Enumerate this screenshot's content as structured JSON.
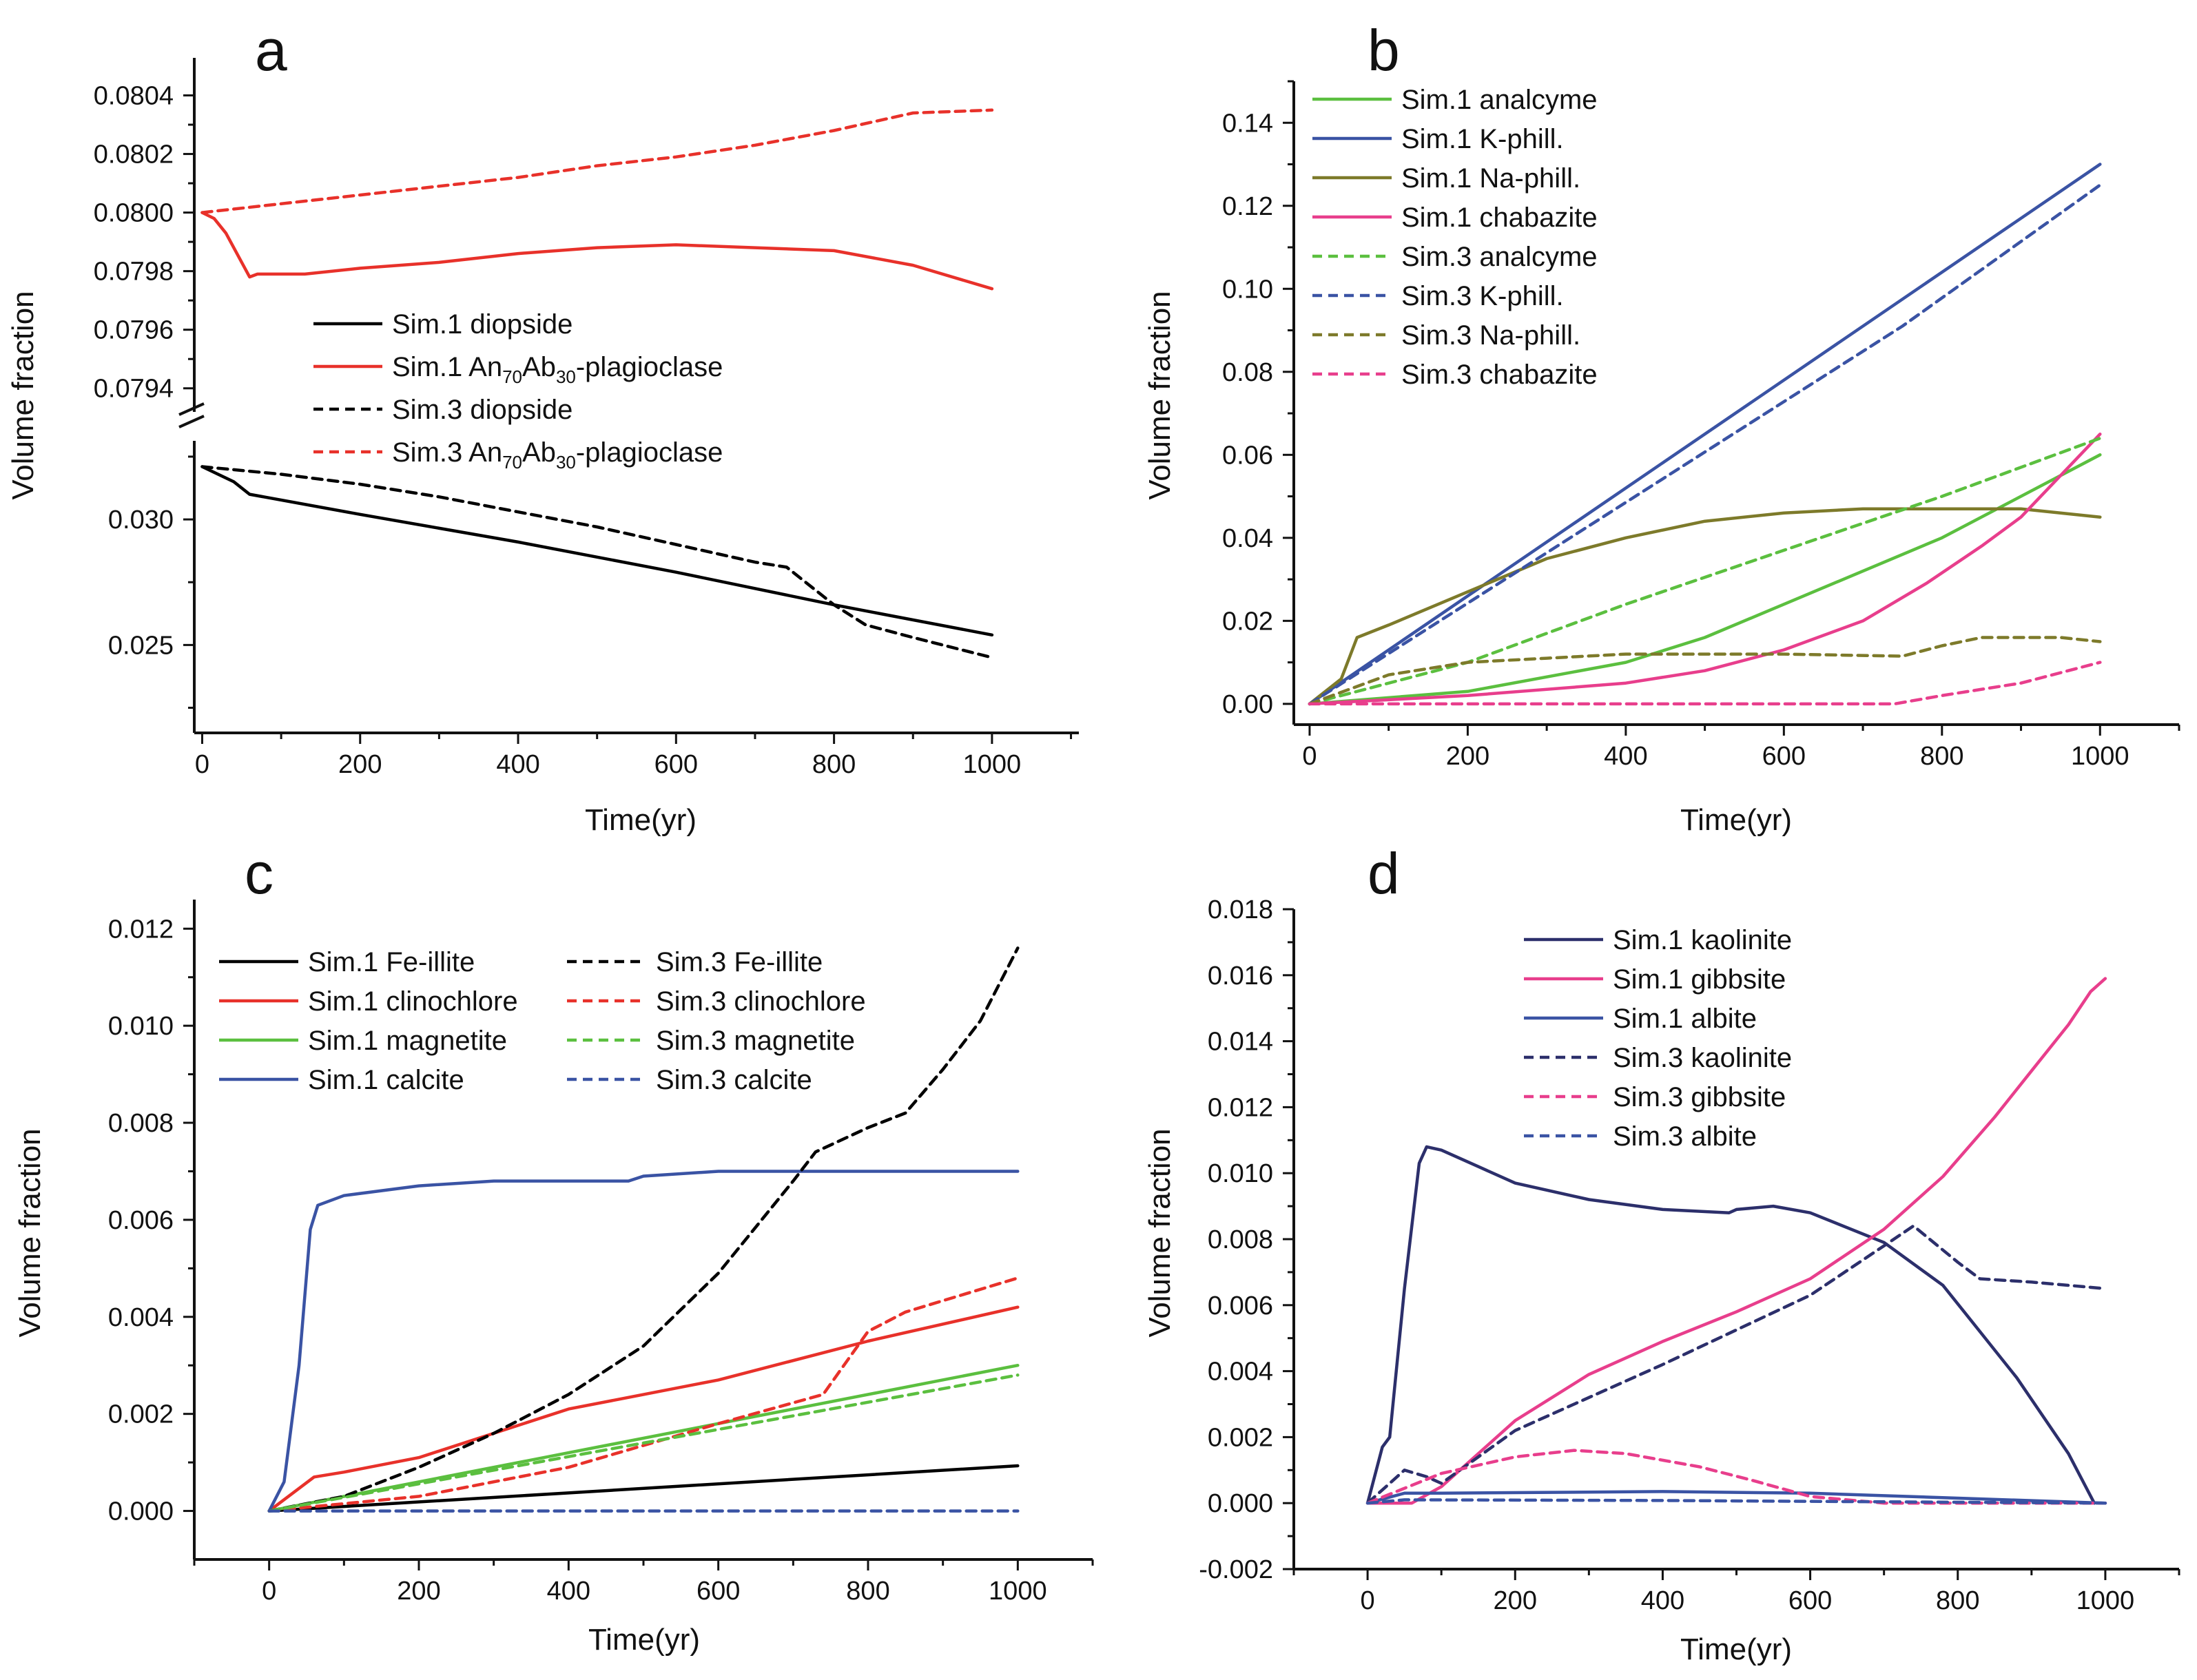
{
  "chart_data": [
    {
      "panel": "a",
      "type": "line",
      "xlabel": "Time(yr)",
      "ylabel": "Volume fraction",
      "xlim": [
        -10,
        1110
      ],
      "xticks": [
        0,
        200,
        400,
        600,
        800,
        1000
      ],
      "y_axis_broken": true,
      "upper_ylim": [
        0.07935,
        0.08042
      ],
      "upper_yticks": [
        0.0794,
        0.0796,
        0.0798,
        0.08,
        0.0802,
        0.0804
      ],
      "upper_ytick_labels": [
        "0.0794",
        "0.0796",
        "0.0798",
        "0.0800",
        "0.0802",
        "0.0804"
      ],
      "lower_ylim": [
        0.0215,
        0.0328
      ],
      "lower_yticks": [
        0.025,
        0.03
      ],
      "lower_ytick_labels": [
        "0.025",
        "0.030"
      ],
      "legend": [
        {
          "label": "Sim.1 diopside",
          "color": "#000000",
          "dash": false
        },
        {
          "label": "Sim.1 An",
          "sub1": "70",
          "mid": "Ab",
          "sub2": "30",
          "tail": "-plagioclase",
          "color": "#e8312a",
          "dash": false
        },
        {
          "label": "Sim.3 diopside",
          "color": "#000000",
          "dash": true
        },
        {
          "label": "Sim.3 An",
          "sub1": "70",
          "mid": "Ab",
          "sub2": "30",
          "tail": "-plagioclase",
          "color": "#e8312a",
          "dash": true
        }
      ],
      "series": [
        {
          "name": "Sim.1 diopside",
          "axis": "lower",
          "color": "#000000",
          "dash": false,
          "x": [
            0,
            40,
            60,
            200,
            400,
            600,
            800,
            1000
          ],
          "y": [
            0.0321,
            0.0315,
            0.031,
            0.0302,
            0.0291,
            0.0279,
            0.0266,
            0.0254
          ]
        },
        {
          "name": "Sim.3 diopside",
          "axis": "lower",
          "color": "#000000",
          "dash": true,
          "x": [
            0,
            100,
            200,
            300,
            400,
            500,
            600,
            700,
            740,
            800,
            840,
            900,
            1000
          ],
          "y": [
            0.0321,
            0.0318,
            0.0314,
            0.0309,
            0.0303,
            0.0297,
            0.029,
            0.0283,
            0.0281,
            0.0266,
            0.0258,
            0.0253,
            0.0245
          ]
        },
        {
          "name": "Sim.1 An70Ab30-plagioclase",
          "axis": "upper",
          "color": "#e8312a",
          "dash": false,
          "x": [
            0,
            15,
            30,
            60,
            70,
            130,
            200,
            300,
            400,
            500,
            600,
            700,
            800,
            900,
            1000
          ],
          "y": [
            0.08,
            0.07998,
            0.07993,
            0.07978,
            0.07979,
            0.07979,
            0.07981,
            0.07983,
            0.07986,
            0.07988,
            0.07989,
            0.07988,
            0.07987,
            0.07982,
            0.07974
          ]
        },
        {
          "name": "Sim.3 An70Ab30-plagioclase",
          "axis": "upper",
          "color": "#e8312a",
          "dash": true,
          "x": [
            0,
            100,
            200,
            300,
            400,
            500,
            600,
            700,
            800,
            900,
            1000
          ],
          "y": [
            0.08,
            0.08003,
            0.08006,
            0.08009,
            0.08012,
            0.08016,
            0.08019,
            0.08023,
            0.08028,
            0.08034,
            0.08035
          ]
        }
      ]
    },
    {
      "panel": "b",
      "type": "line",
      "xlabel": "Time(yr)",
      "ylabel": "Volume fraction",
      "xlim": [
        -20,
        1100
      ],
      "ylim": [
        -0.005,
        0.15
      ],
      "xticks": [
        0,
        200,
        400,
        600,
        800,
        1000
      ],
      "yticks": [
        0,
        0.02,
        0.04,
        0.06,
        0.08,
        0.1,
        0.12,
        0.14
      ],
      "ytick_labels": [
        "0.00",
        "0.02",
        "0.04",
        "0.06",
        "0.08",
        "0.10",
        "0.12",
        "0.14"
      ],
      "legend": [
        {
          "label": "Sim.1 analcyme",
          "color": "#5bbf3f",
          "dash": false
        },
        {
          "label": "Sim.1 K-phill.",
          "color": "#3a53a4",
          "dash": false
        },
        {
          "label": "Sim.1 Na-phill.",
          "color": "#7d7a2a",
          "dash": false
        },
        {
          "label": "Sim.1 chabazite",
          "color": "#e83e8c",
          "dash": false
        },
        {
          "label": "Sim.3 analcyme",
          "color": "#5bbf3f",
          "dash": true
        },
        {
          "label": "Sim.3 K-phill.",
          "color": "#3a53a4",
          "dash": true
        },
        {
          "label": "Sim.3 Na-phill.",
          "color": "#7d7a2a",
          "dash": true
        },
        {
          "label": "Sim.3 chabazite",
          "color": "#e83e8c",
          "dash": true
        }
      ],
      "series": [
        {
          "name": "Sim.1 analcyme",
          "color": "#5bbf3f",
          "dash": false,
          "x": [
            0,
            200,
            400,
            500,
            600,
            800,
            1000
          ],
          "y": [
            0,
            0.003,
            0.01,
            0.016,
            0.024,
            0.04,
            0.06
          ]
        },
        {
          "name": "Sim.1 K-phill.",
          "color": "#3a53a4",
          "dash": false,
          "x": [
            0,
            1000
          ],
          "y": [
            0,
            0.13
          ]
        },
        {
          "name": "Sim.1 Na-phill.",
          "color": "#7d7a2a",
          "dash": false,
          "x": [
            0,
            40,
            60,
            100,
            200,
            300,
            400,
            500,
            600,
            700,
            800,
            900,
            1000
          ],
          "y": [
            0,
            0.006,
            0.016,
            0.019,
            0.027,
            0.035,
            0.04,
            0.044,
            0.046,
            0.047,
            0.047,
            0.047,
            0.045
          ]
        },
        {
          "name": "Sim.1 chabazite",
          "color": "#e83e8c",
          "dash": false,
          "x": [
            0,
            200,
            400,
            500,
            600,
            700,
            780,
            850,
            900,
            1000
          ],
          "y": [
            0,
            0.002,
            0.005,
            0.008,
            0.013,
            0.02,
            0.029,
            0.038,
            0.045,
            0.065
          ]
        },
        {
          "name": "Sim.3 analcyme",
          "color": "#5bbf3f",
          "dash": true,
          "x": [
            0,
            200,
            400,
            600,
            800,
            1000
          ],
          "y": [
            0,
            0.01,
            0.024,
            0.037,
            0.05,
            0.064
          ]
        },
        {
          "name": "Sim.3 K-phill.",
          "color": "#3a53a4",
          "dash": true,
          "x": [
            0,
            750,
            1000
          ],
          "y": [
            0,
            0.091,
            0.125
          ]
        },
        {
          "name": "Sim.3 Na-phill.",
          "color": "#7d7a2a",
          "dash": true,
          "x": [
            0,
            100,
            200,
            300,
            400,
            500,
            600,
            750,
            800,
            850,
            950,
            1000
          ],
          "y": [
            0,
            0.007,
            0.01,
            0.011,
            0.012,
            0.012,
            0.012,
            0.0115,
            0.014,
            0.016,
            0.016,
            0.015
          ]
        },
        {
          "name": "Sim.3 chabazite",
          "color": "#e83e8c",
          "dash": true,
          "x": [
            0,
            400,
            740,
            800,
            900,
            1000
          ],
          "y": [
            0,
            0,
            0,
            0.002,
            0.005,
            0.01
          ]
        }
      ]
    },
    {
      "panel": "c",
      "type": "line",
      "xlabel": "Time(yr)",
      "ylabel": "Volume fraction",
      "xlim": [
        -100,
        1100
      ],
      "ylim": [
        -0.001,
        0.0126
      ],
      "xticks": [
        0,
        200,
        400,
        600,
        800,
        1000
      ],
      "yticks": [
        0,
        0.002,
        0.004,
        0.006,
        0.008,
        0.01,
        0.012
      ],
      "ytick_labels": [
        "0.000",
        "0.002",
        "0.004",
        "0.006",
        "0.008",
        "0.010",
        "0.012"
      ],
      "legend": [
        {
          "label": "Sim.1 Fe-illite",
          "color": "#000000",
          "dash": false
        },
        {
          "label": "Sim.1 clinochlore",
          "color": "#e8312a",
          "dash": false
        },
        {
          "label": "Sim.1 magnetite",
          "color": "#5bbf3f",
          "dash": false
        },
        {
          "label": "Sim.1 calcite",
          "color": "#3a53a4",
          "dash": false
        },
        {
          "label": "Sim.3 Fe-illite",
          "color": "#000000",
          "dash": true
        },
        {
          "label": "Sim.3 clinochlore",
          "color": "#e8312a",
          "dash": true
        },
        {
          "label": "Sim.3 magnetite",
          "color": "#5bbf3f",
          "dash": true
        },
        {
          "label": "Sim.3 calcite",
          "color": "#3a53a4",
          "dash": true
        }
      ],
      "series": [
        {
          "name": "Sim.1 Fe-illite",
          "color": "#000000",
          "dash": false,
          "x": [
            0,
            1000
          ],
          "y": [
            0,
            0.00093
          ]
        },
        {
          "name": "Sim.1 clinochlore",
          "color": "#e8312a",
          "dash": false,
          "x": [
            0,
            60,
            100,
            200,
            400,
            600,
            800,
            1000
          ],
          "y": [
            0,
            0.0007,
            0.0008,
            0.0011,
            0.0021,
            0.0027,
            0.0035,
            0.0042
          ]
        },
        {
          "name": "Sim.1 magnetite",
          "color": "#5bbf3f",
          "dash": false,
          "x": [
            0,
            1000
          ],
          "y": [
            0,
            0.003
          ]
        },
        {
          "name": "Sim.1 calcite",
          "color": "#3a53a4",
          "dash": false,
          "x": [
            0,
            20,
            40,
            55,
            65,
            100,
            200,
            300,
            480,
            500,
            600,
            800,
            1000
          ],
          "y": [
            0,
            0.0006,
            0.003,
            0.0058,
            0.0063,
            0.0065,
            0.0067,
            0.0068,
            0.0068,
            0.0069,
            0.007,
            0.007,
            0.007
          ]
        },
        {
          "name": "Sim.3 Fe-illite",
          "color": "#000000",
          "dash": true,
          "x": [
            0,
            100,
            200,
            300,
            400,
            500,
            600,
            700,
            730,
            800,
            850,
            900,
            950,
            1000
          ],
          "y": [
            0,
            0.0003,
            0.0009,
            0.0016,
            0.0024,
            0.0034,
            0.0049,
            0.0068,
            0.0074,
            0.0079,
            0.0082,
            0.0091,
            0.0101,
            0.0116
          ]
        },
        {
          "name": "Sim.3 clinochlore",
          "color": "#e8312a",
          "dash": true,
          "x": [
            0,
            200,
            400,
            600,
            740,
            800,
            850,
            1000
          ],
          "y": [
            0,
            0.0003,
            0.0009,
            0.0018,
            0.0024,
            0.0037,
            0.0041,
            0.0048
          ]
        },
        {
          "name": "Sim.3 magnetite",
          "color": "#5bbf3f",
          "dash": true,
          "x": [
            0,
            1000
          ],
          "y": [
            0,
            0.0028
          ]
        },
        {
          "name": "Sim.3 calcite",
          "color": "#3a53a4",
          "dash": true,
          "x": [
            0,
            1000
          ],
          "y": [
            0,
            0
          ]
        }
      ]
    },
    {
      "panel": "d",
      "type": "line",
      "xlabel": "Time(yr)",
      "ylabel": "Volume fraction",
      "xlim": [
        -100,
        1100
      ],
      "ylim": [
        -0.002,
        0.018
      ],
      "xticks": [
        0,
        200,
        400,
        600,
        800,
        1000
      ],
      "yticks": [
        -0.002,
        0,
        0.002,
        0.004,
        0.006,
        0.008,
        0.01,
        0.012,
        0.014,
        0.016,
        0.018
      ],
      "ytick_labels": [
        "-0.002",
        "0.000",
        "0.002",
        "0.004",
        "0.006",
        "0.008",
        "0.010",
        "0.012",
        "0.014",
        "0.016",
        "0.018"
      ],
      "legend": [
        {
          "label": "Sim.1 kaolinite",
          "color": "#2c2f6b",
          "dash": false
        },
        {
          "label": "Sim.1 gibbsite",
          "color": "#e83e8c",
          "dash": false
        },
        {
          "label": "Sim.1 albite",
          "color": "#3a53a4",
          "dash": false
        },
        {
          "label": "Sim.3 kaolinite",
          "color": "#2c2f6b",
          "dash": true
        },
        {
          "label": "Sim.3 gibbsite",
          "color": "#e83e8c",
          "dash": true
        },
        {
          "label": "Sim.3 albite",
          "color": "#3a53a4",
          "dash": true
        }
      ],
      "series": [
        {
          "name": "Sim.1 kaolinite",
          "color": "#2c2f6b",
          "dash": false,
          "x": [
            0,
            20,
            30,
            50,
            70,
            80,
            100,
            150,
            200,
            300,
            400,
            490,
            500,
            550,
            600,
            700,
            780,
            830,
            880,
            950,
            985
          ],
          "y": [
            0,
            0.0017,
            0.002,
            0.0065,
            0.0103,
            0.0108,
            0.0107,
            0.0102,
            0.0097,
            0.0092,
            0.0089,
            0.0088,
            0.0089,
            0.009,
            0.0088,
            0.0079,
            0.0066,
            0.0052,
            0.0038,
            0.0015,
            0
          ]
        },
        {
          "name": "Sim.1 gibbsite",
          "color": "#e83e8c",
          "dash": false,
          "x": [
            0,
            60,
            100,
            200,
            300,
            400,
            500,
            600,
            700,
            780,
            850,
            900,
            950,
            980,
            1000
          ],
          "y": [
            0,
            0,
            0.0005,
            0.0025,
            0.0039,
            0.0049,
            0.0058,
            0.0068,
            0.0083,
            0.0099,
            0.0117,
            0.0131,
            0.0145,
            0.0155,
            0.0159
          ]
        },
        {
          "name": "Sim.1 albite",
          "color": "#3a53a4",
          "dash": false,
          "x": [
            0,
            50,
            100,
            400,
            600,
            800,
            1000
          ],
          "y": [
            0,
            0.0003,
            0.0003,
            0.00035,
            0.0003,
            0.00015,
            0
          ]
        },
        {
          "name": "Sim.3 kaolinite",
          "color": "#2c2f6b",
          "dash": true,
          "x": [
            0,
            50,
            80,
            100,
            200,
            400,
            600,
            700,
            740,
            800,
            830,
            900,
            1000
          ],
          "y": [
            0,
            0.001,
            0.0008,
            0.0006,
            0.0022,
            0.0042,
            0.0063,
            0.0078,
            0.0084,
            0.0073,
            0.0068,
            0.0067,
            0.0065
          ]
        },
        {
          "name": "Sim.3 gibbsite",
          "color": "#e83e8c",
          "dash": true,
          "x": [
            0,
            100,
            200,
            280,
            350,
            450,
            520,
            600,
            700,
            1000
          ],
          "y": [
            0,
            0.0009,
            0.0014,
            0.0016,
            0.0015,
            0.0011,
            0.0007,
            0.0002,
            0,
            0
          ]
        },
        {
          "name": "Sim.3 albite",
          "color": "#3a53a4",
          "dash": true,
          "x": [
            0,
            50,
            400,
            1000
          ],
          "y": [
            0,
            0.0001,
            8e-05,
            0
          ]
        }
      ]
    }
  ]
}
